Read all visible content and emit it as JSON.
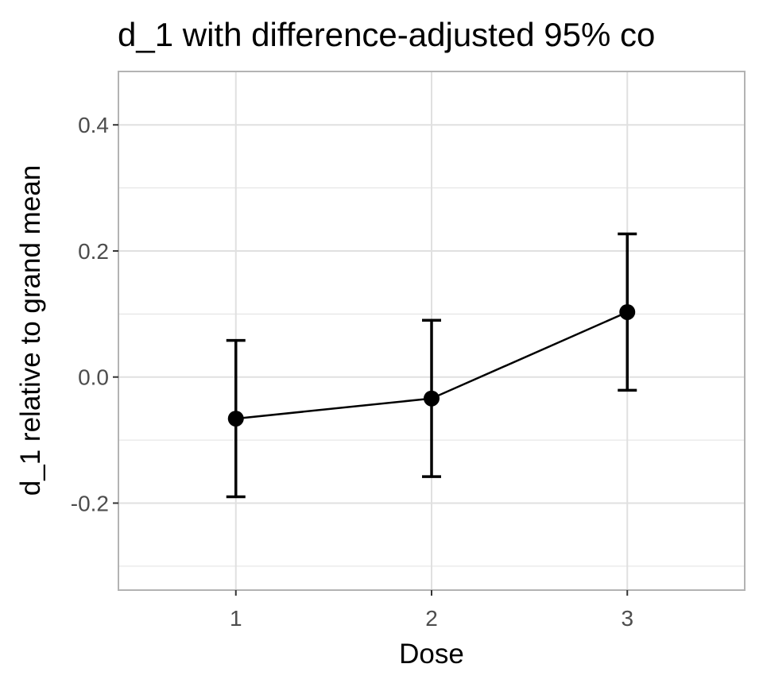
{
  "chart_data": {
    "type": "line",
    "title": "d_1 with difference-adjusted 95% co",
    "xlabel": "Dose",
    "ylabel": "d_1 relative to grand mean",
    "categories": [
      "1",
      "2",
      "3"
    ],
    "series": [
      {
        "values": [
          -0.066,
          -0.034,
          0.103
        ],
        "ci_lower": [
          -0.19,
          -0.158,
          -0.021
        ],
        "ci_upper": [
          0.058,
          0.09,
          0.227
        ]
      }
    ],
    "xlim": [
      0.4,
      3.6
    ],
    "ylim": [
      -0.338,
      0.4847
    ],
    "yticks": [
      -0.2,
      0.0,
      0.2,
      0.4
    ],
    "ytick_labels": [
      "-0.2",
      "0.0",
      "0.2",
      "0.4"
    ],
    "grid": true,
    "colors": {
      "line": "#000000",
      "grid": "#e0e0e0",
      "panel_border": "#b3b3b3",
      "tick_text": "#4d4d4d"
    }
  }
}
